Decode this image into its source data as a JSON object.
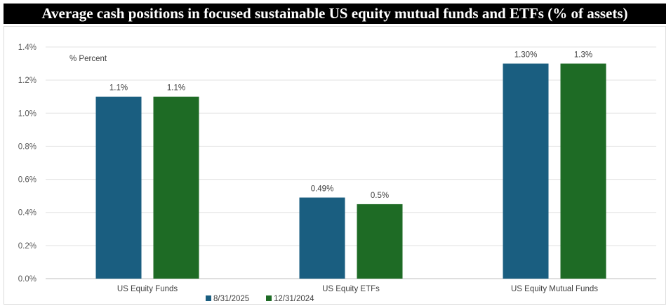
{
  "title": "Average cash positions in focused sustainable US equity mutual funds and ETFs (% of assets)",
  "chart_data": {
    "type": "bar",
    "title": "Average cash positions in focused sustainable US equity mutual funds and ETFs (% of assets)",
    "unit_label": "% Percent",
    "categories": [
      "US Equity Funds",
      "US Equity ETFs",
      "US Equity Mutual Funds"
    ],
    "series": [
      {
        "name": "8/31/2025",
        "color": "#1a5e80",
        "values": [
          1.1,
          0.49,
          1.3
        ],
        "labels": [
          "1.1%",
          "0.49%",
          "1.30%"
        ]
      },
      {
        "name": "12/31/2024",
        "color": "#1e6b25",
        "values": [
          1.1,
          0.45,
          1.3
        ],
        "labels": [
          "1.1%",
          "0.5%",
          "1.3%"
        ]
      }
    ],
    "ylim": [
      0,
      1.4
    ],
    "yticks": [
      0,
      0.2,
      0.4,
      0.6,
      0.8,
      1.0,
      1.2,
      1.4
    ],
    "ytick_labels": [
      "0.0%",
      "0.2%",
      "0.4%",
      "0.6%",
      "0.8%",
      "1.0%",
      "1.2%",
      "1.4%"
    ],
    "grid": true,
    "legend_position": "bottom-center"
  }
}
